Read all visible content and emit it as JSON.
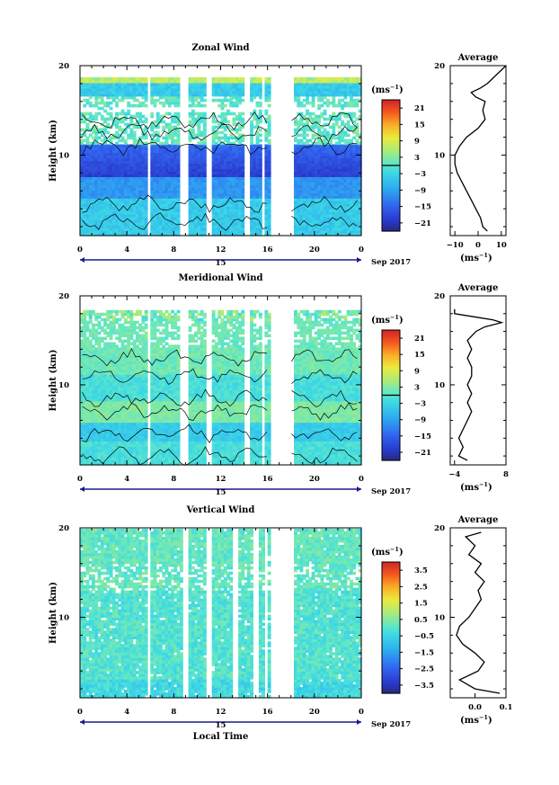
{
  "chart_data": [
    {
      "type": "heatmap",
      "title": "Zonal Wind",
      "ylabel": "Height (km)",
      "ylim": [
        1,
        20
      ],
      "y_ticks": [
        10,
        20
      ],
      "xlim": [
        0,
        24
      ],
      "x_ticks": [
        "0",
        "4",
        "8",
        "12",
        "16",
        "20",
        "0"
      ],
      "date_label": "15",
      "date_suffix": "Sep 2017",
      "colorbar": {
        "unit": "(ms",
        "unit_exp": "−1",
        "unit_close": ")",
        "ticks": [
          "21",
          "15",
          "9",
          "3",
          "−3",
          "−9",
          "−15",
          "−21"
        ],
        "range": [
          -24,
          24
        ]
      },
      "average": {
        "title": "Average",
        "ylim": [
          1,
          20
        ],
        "y_ticks": [
          "10",
          "20"
        ],
        "x_ticks": [
          "−10",
          "0",
          "10"
        ],
        "xlim": [
          -12,
          12
        ],
        "xlabel": "(ms",
        "xlabel_exp": "−1",
        "xlabel_close": ")",
        "profile": {
          "height": [
            1.5,
            2,
            3,
            4,
            5,
            6,
            7,
            8,
            9,
            10,
            11,
            12,
            13,
            14,
            15,
            16,
            16.5,
            17,
            17.5,
            18,
            18.5,
            19,
            19.5,
            20
          ],
          "value": [
            4,
            2,
            1,
            -1,
            -3,
            -5,
            -7,
            -9,
            -10,
            -10,
            -8,
            -5,
            0,
            3,
            2,
            3,
            -1,
            -3,
            1,
            4,
            6,
            8,
            10,
            12
          ]
        }
      },
      "missing_local_time_gaps": [
        [
          5.8,
          6.0
        ],
        [
          8.7,
          9.1
        ],
        [
          10.9,
          11.1
        ],
        [
          14.2,
          14.4
        ],
        [
          15.5,
          15.7
        ],
        [
          17.9,
          18.2
        ]
      ]
    },
    {
      "type": "heatmap",
      "title": "Meridional Wind",
      "ylabel": "Height (km)",
      "ylim": [
        1,
        20
      ],
      "y_ticks": [
        10,
        20
      ],
      "xlim": [
        0,
        24
      ],
      "x_ticks": [
        "0",
        "4",
        "8",
        "12",
        "16",
        "20",
        "0"
      ],
      "date_label": "15",
      "date_suffix": "Sep 2017",
      "colorbar": {
        "unit": "(ms",
        "unit_exp": "−1",
        "unit_close": ")",
        "ticks": [
          "21",
          "15",
          "9",
          "3",
          "−3",
          "−9",
          "−15",
          "−21"
        ],
        "range": [
          -24,
          24
        ]
      },
      "average": {
        "title": "Average",
        "ylim": [
          1,
          20
        ],
        "y_ticks": [
          "10",
          "20"
        ],
        "x_ticks": [
          "−4",
          "8"
        ],
        "xlim": [
          -5,
          8
        ],
        "xlabel": "(ms",
        "xlabel_exp": "−1",
        "xlabel_close": ")",
        "profile": {
          "height": [
            1.5,
            2,
            3,
            4,
            5,
            6,
            7,
            8,
            9,
            10,
            11,
            12,
            13,
            14,
            15,
            16,
            16.5,
            17,
            17.3,
            17.6,
            18,
            18.5
          ],
          "value": [
            -1,
            -3,
            -2,
            -3,
            -2,
            -1,
            0,
            -1,
            0,
            -1,
            0,
            0,
            -1,
            0,
            -1,
            1,
            3,
            7,
            5,
            1,
            -4,
            -4
          ]
        }
      },
      "missing_local_time_gaps": [
        [
          5.8,
          6.0
        ],
        [
          8.7,
          9.1
        ],
        [
          10.9,
          11.1
        ],
        [
          14.2,
          14.4
        ],
        [
          15.5,
          15.7
        ],
        [
          17.9,
          18.2
        ]
      ]
    },
    {
      "type": "heatmap",
      "title": "Vertical Wind",
      "ylabel": "Height (km)",
      "xlabel": "Local Time",
      "ylim": [
        1,
        20
      ],
      "y_ticks": [
        10,
        20
      ],
      "xlim": [
        0,
        24
      ],
      "x_ticks": [
        "0",
        "4",
        "8",
        "12",
        "16",
        "20",
        "0"
      ],
      "date_label": "15",
      "date_suffix": "Sep 2017",
      "colorbar": {
        "unit": "(ms",
        "unit_exp": "−1",
        "unit_close": ")",
        "ticks": [
          "3.5",
          "2.5",
          "1.5",
          "0.5",
          "−0.5",
          "−1.5",
          "−2.5",
          "−3.5"
        ],
        "range": [
          -4,
          4
        ]
      },
      "average": {
        "title": "Average",
        "ylim": [
          1,
          20
        ],
        "y_ticks": [
          "10",
          "20"
        ],
        "x_ticks": [
          "0.0",
          "0.1"
        ],
        "xlim": [
          -0.08,
          0.1
        ],
        "xlabel": "(ms",
        "xlabel_exp": "−1",
        "xlabel_close": ")",
        "profile": {
          "height": [
            1.5,
            2,
            3,
            4,
            5,
            6,
            7,
            8,
            9,
            10,
            11,
            12,
            13,
            14,
            15,
            16,
            17,
            18,
            19,
            19.5
          ],
          "value": [
            0.08,
            0.0,
            -0.05,
            0.01,
            0.03,
            0.0,
            -0.04,
            -0.06,
            -0.05,
            -0.02,
            0.0,
            0.02,
            0.01,
            0.03,
            0.0,
            0.02,
            -0.02,
            0.0,
            -0.03,
            0.02
          ]
        }
      },
      "missing_local_time_gaps": [
        [
          5.8,
          6.0
        ],
        [
          8.9,
          9.1
        ],
        [
          10.9,
          11.1
        ],
        [
          13.2,
          13.4
        ],
        [
          14.9,
          15.1
        ],
        [
          15.8,
          16.0
        ],
        [
          17.9,
          18.2
        ]
      ]
    }
  ]
}
